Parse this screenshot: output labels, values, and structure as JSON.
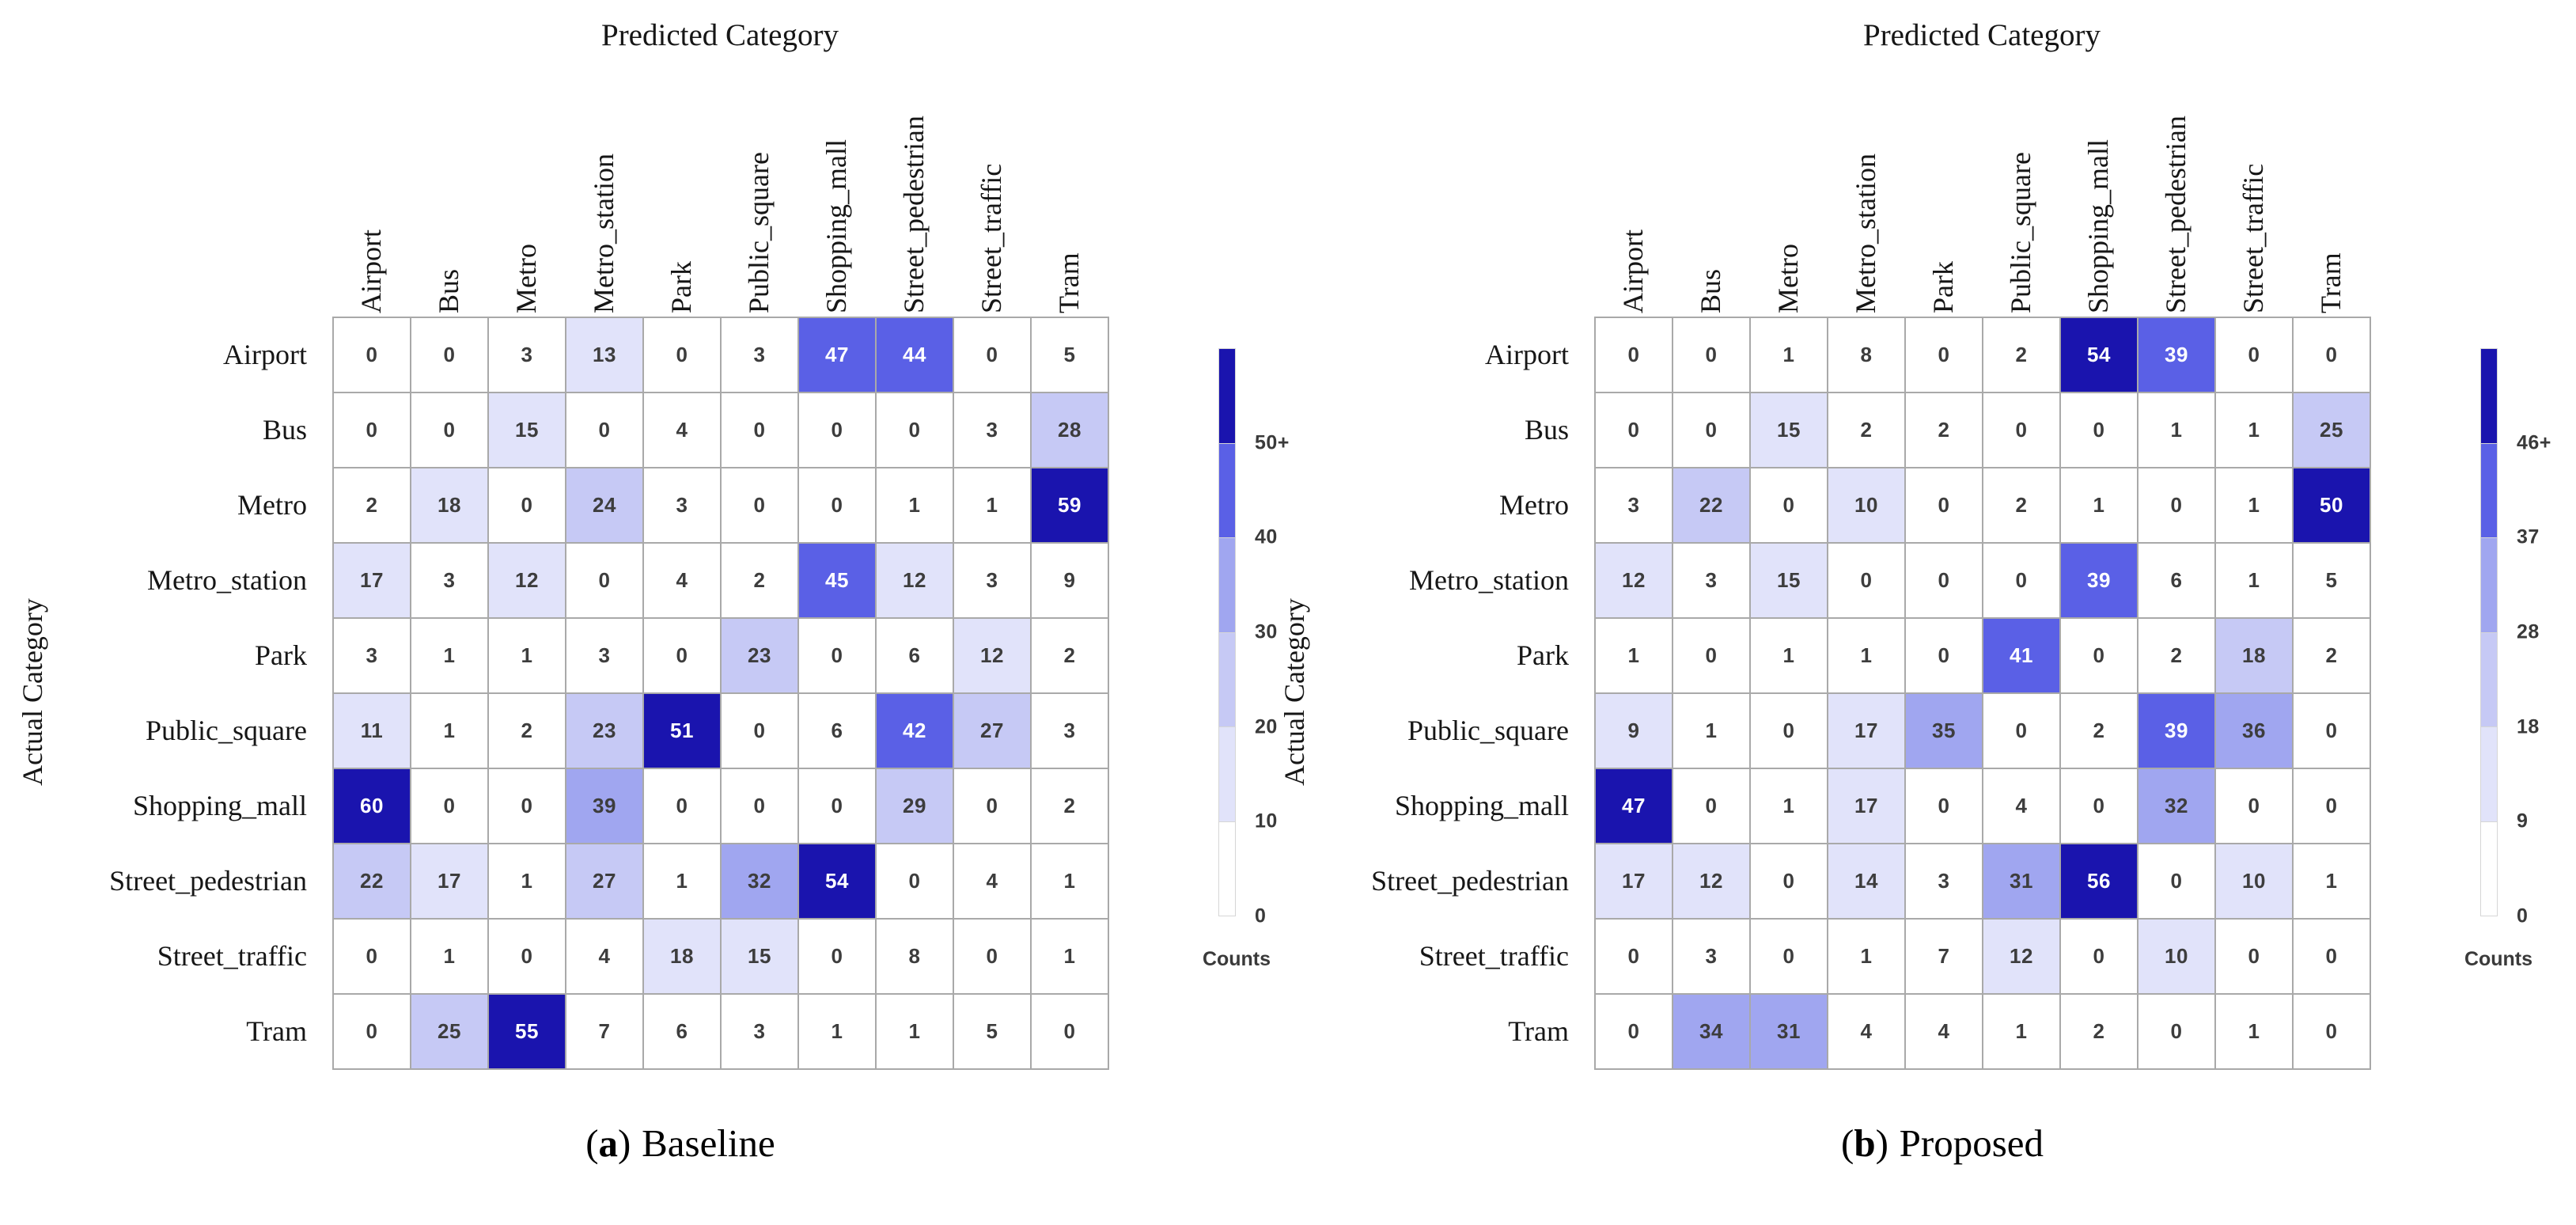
{
  "colors": {
    "bins": [
      "#ffffff",
      "#e1e3fa",
      "#c6c9f5",
      "#a0a6f0",
      "#5a60e6",
      "#1a14ae"
    ],
    "cell_text_dark": "#3d3d3d",
    "cell_text_light": "#ffffff",
    "grid_line": "#a9a9a9"
  },
  "chart_data": [
    {
      "type": "heatmap",
      "top_axis_label": "Predicted Category",
      "ylabel": "Actual Category",
      "categories": [
        "Airport",
        "Bus",
        "Metro",
        "Metro_station",
        "Park",
        "Public_square",
        "Shopping_mall",
        "Street_pedestrian",
        "Street_traffic",
        "Tram"
      ],
      "rows": [
        [
          0,
          0,
          3,
          13,
          0,
          3,
          47,
          44,
          0,
          5
        ],
        [
          0,
          0,
          15,
          0,
          4,
          0,
          0,
          0,
          3,
          28
        ],
        [
          2,
          18,
          0,
          24,
          3,
          0,
          0,
          1,
          1,
          59
        ],
        [
          17,
          3,
          12,
          0,
          4,
          2,
          45,
          12,
          3,
          9
        ],
        [
          3,
          1,
          1,
          3,
          0,
          23,
          0,
          6,
          12,
          2
        ],
        [
          11,
          1,
          2,
          23,
          51,
          0,
          6,
          42,
          27,
          3
        ],
        [
          60,
          0,
          0,
          39,
          0,
          0,
          0,
          29,
          0,
          2
        ],
        [
          22,
          17,
          1,
          27,
          1,
          32,
          54,
          0,
          4,
          1
        ],
        [
          0,
          1,
          0,
          4,
          18,
          15,
          0,
          8,
          0,
          1
        ],
        [
          0,
          25,
          55,
          7,
          6,
          3,
          1,
          1,
          5,
          0
        ]
      ],
      "colorbar": {
        "ticks_top_to_bottom": [
          "50+",
          "40",
          "30",
          "20",
          "10",
          "0"
        ],
        "bin_edges": [
          0,
          10,
          20,
          30,
          40,
          50
        ],
        "label": "Counts"
      },
      "caption": {
        "marker": "a",
        "text": "Baseline"
      }
    },
    {
      "type": "heatmap",
      "top_axis_label": "Predicted Category",
      "ylabel": "Actual Category",
      "categories": [
        "Airport",
        "Bus",
        "Metro",
        "Metro_station",
        "Park",
        "Public_square",
        "Shopping_mall",
        "Street_pedestrian",
        "Street_traffic",
        "Tram"
      ],
      "rows": [
        [
          0,
          0,
          1,
          8,
          0,
          2,
          54,
          39,
          0,
          0
        ],
        [
          0,
          0,
          15,
          2,
          2,
          0,
          0,
          1,
          1,
          25
        ],
        [
          3,
          22,
          0,
          10,
          0,
          2,
          1,
          0,
          1,
          50
        ],
        [
          12,
          3,
          15,
          0,
          0,
          0,
          39,
          6,
          1,
          5
        ],
        [
          1,
          0,
          1,
          1,
          0,
          41,
          0,
          2,
          18,
          2
        ],
        [
          9,
          1,
          0,
          17,
          35,
          0,
          2,
          39,
          36,
          0
        ],
        [
          47,
          0,
          1,
          17,
          0,
          4,
          0,
          32,
          0,
          0
        ],
        [
          17,
          12,
          0,
          14,
          3,
          31,
          56,
          0,
          10,
          1
        ],
        [
          0,
          3,
          0,
          1,
          7,
          12,
          0,
          10,
          0,
          0
        ],
        [
          0,
          34,
          31,
          4,
          4,
          1,
          2,
          0,
          1,
          0
        ]
      ],
      "colorbar": {
        "ticks_top_to_bottom": [
          "46+",
          "37",
          "28",
          "18",
          "9",
          "0"
        ],
        "bin_edges": [
          0,
          9,
          18,
          28,
          37,
          46
        ],
        "label": "Counts"
      },
      "caption": {
        "marker": "b",
        "text": "Proposed"
      }
    }
  ]
}
